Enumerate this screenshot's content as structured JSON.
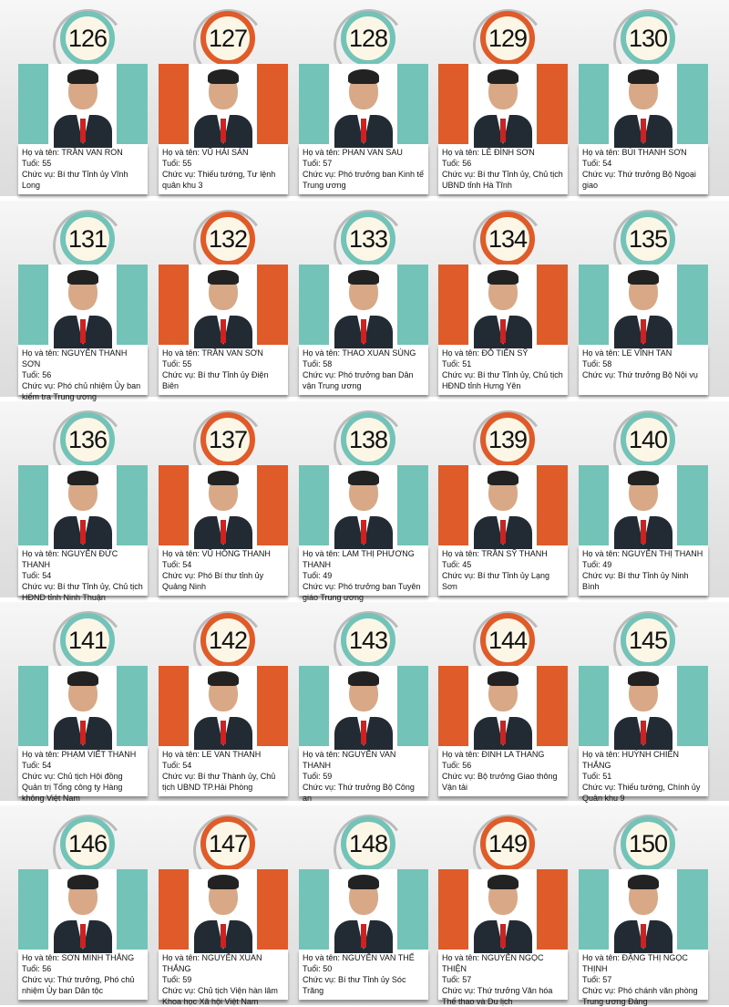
{
  "colors": {
    "teal": "#74c3b9",
    "orange": "#e05b2a"
  },
  "labels": {
    "name": "Họ và tên: ",
    "age": "Tuổi: ",
    "position": "Chức vụ: "
  },
  "people": [
    {
      "number": "126",
      "color": "teal",
      "name": "TRẦN VAN RON",
      "age": "55",
      "position": "Bí thư Tỉnh ủy Vĩnh Long"
    },
    {
      "number": "127",
      "color": "orange",
      "name": "VŨ HẢI SẢN",
      "age": "55",
      "position": "Thiếu tướng, Tư lệnh quân khu 3"
    },
    {
      "number": "128",
      "color": "teal",
      "name": "PHAN VAN SAU",
      "age": "57",
      "position": "Phó trưởng ban Kinh tế Trung ương"
    },
    {
      "number": "129",
      "color": "orange",
      "name": "LÊ ĐÌNH SƠN",
      "age": "56",
      "position": "Bí thư Tỉnh ủy, Chủ tịch UBND tỉnh Hà Tĩnh"
    },
    {
      "number": "130",
      "color": "teal",
      "name": "BÙI THANH SƠN",
      "age": "54",
      "position": "Thứ trưởng Bộ Ngoại giao"
    },
    {
      "number": "131",
      "color": "teal",
      "name": "NGUYỄN THANH SƠN",
      "age": "56",
      "position": "Phó chủ nhiệm Ủy ban kiểm tra Trung ương"
    },
    {
      "number": "132",
      "color": "orange",
      "name": "TRẦN VAN SƠN",
      "age": "55",
      "position": "Bí thư Tỉnh ủy Điện Biên"
    },
    {
      "number": "133",
      "color": "teal",
      "name": "THAO XUAN SÙNG",
      "age": "58",
      "position": "Phó trưởng ban Dân vận Trung ương"
    },
    {
      "number": "134",
      "color": "orange",
      "name": "ĐỖ TIẾN SỸ",
      "age": "51",
      "position": "Bí thư Tỉnh ủy, Chủ tịch HĐND tỉnh Hưng Yên"
    },
    {
      "number": "135",
      "color": "teal",
      "name": "LE VĨNH TAN",
      "age": "58",
      "position": "Thứ trưởng Bộ Nội vụ"
    },
    {
      "number": "136",
      "color": "teal",
      "name": "NGUYỄN ĐỨC THANH",
      "age": "54",
      "position": "Bí thư Tỉnh ủy, Chủ tịch HĐND tỉnh Ninh Thuận"
    },
    {
      "number": "137",
      "color": "orange",
      "name": "VŨ HỒNG THANH",
      "age": "54",
      "position": "Phó Bí thư tỉnh ủy Quảng Ninh"
    },
    {
      "number": "138",
      "color": "teal",
      "name": "LAM THỊ PHƯƠNG THANH",
      "age": "49",
      "position": "Phó trưởng ban Tuyên giáo Trung ương"
    },
    {
      "number": "139",
      "color": "orange",
      "name": "TRẦN SỸ THANH",
      "age": "45",
      "position": "Bí thư Tỉnh ủy Lạng Sơn"
    },
    {
      "number": "140",
      "color": "teal",
      "name": "NGUYỄN THỊ THANH",
      "age": "49",
      "position": "Bí thư Tỉnh ủy Ninh Bình"
    },
    {
      "number": "141",
      "color": "teal",
      "name": "PHẠM VIẾT THANH",
      "age": "54",
      "position": "Chủ tịch Hội đồng Quản trị Tổng công ty Hàng không Việt Nam"
    },
    {
      "number": "142",
      "color": "orange",
      "name": "LE VAN THANH",
      "age": "54",
      "position": "Bí thư Thành ủy, Chủ tịch UBND TP.Hải Phòng"
    },
    {
      "number": "143",
      "color": "teal",
      "name": "NGUYỄN VAN THANH",
      "age": "59",
      "position": "Thứ trưởng Bộ Công an"
    },
    {
      "number": "144",
      "color": "orange",
      "name": "ĐINH LA THANG",
      "age": "56",
      "position": "Bộ trưởng Giao thông Vận tải"
    },
    {
      "number": "145",
      "color": "teal",
      "name": "HUỲNH CHIẾN THẮNG",
      "age": "51",
      "position": "Thiếu tướng, Chính ủy Quân khu 9"
    },
    {
      "number": "146",
      "color": "teal",
      "name": "SƠN MINH THẮNG",
      "age": "56",
      "position": "Thứ trưởng, Phó chủ nhiệm Ủy ban Dân tộc"
    },
    {
      "number": "147",
      "color": "orange",
      "name": "NGUYỄN XUAN THẮNG",
      "age": "59",
      "position": "Chủ tịch Viện hàn lâm Khoa học Xã hội Việt Nam"
    },
    {
      "number": "148",
      "color": "teal",
      "name": "NGUYỄN VAN THỂ",
      "age": "50",
      "position": "Bí thư Tỉnh ủy Sóc Trăng"
    },
    {
      "number": "149",
      "color": "orange",
      "name": "NGUYỄN NGỌC THIỆN",
      "age": "57",
      "position": "Thứ trưởng Văn hóa Thể thao và Du lịch"
    },
    {
      "number": "150",
      "color": "teal",
      "name": "ĐẶNG THỊ NGỌC THỊNH",
      "age": "57",
      "position": "Phó chánh văn phòng Trung ương Đảng"
    }
  ]
}
